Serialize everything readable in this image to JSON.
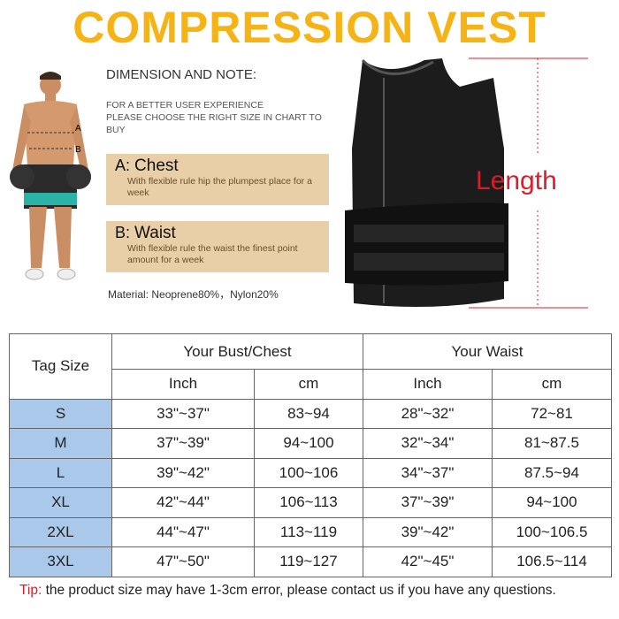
{
  "title": "COMPRESSION VEST",
  "dimension_heading": "DIMENSION AND NOTE:",
  "note_lines": [
    "FOR A BETTER USER EXPERIENCE",
    "PLEASE CHOOSE THE RIGHT SIZE IN CHART  TO BUY"
  ],
  "chest": {
    "letter": "A",
    "label": "Chest",
    "desc": "With flexible rule hip the plumpest place for a week"
  },
  "waist": {
    "letter": "B",
    "label": "Waist",
    "desc": "With flexible rule the waist the finest point amount for a week"
  },
  "material": "Material: Neoprene80%，Nylon20%",
  "figure_labels": {
    "a": "A",
    "b": "B"
  },
  "length_label": "Length",
  "table": {
    "tag_header": "Tag Size",
    "bust_header": "Your Bust/Chest",
    "waist_header": "Your Waist",
    "units": [
      "Inch",
      "cm",
      "Inch",
      "cm"
    ],
    "rows": [
      [
        "S",
        "33\"~37\"",
        "83~94",
        "28\"~32\"",
        "72~81"
      ],
      [
        "M",
        "37\"~39\"",
        "94~100",
        "32\"~34\"",
        "81~87.5"
      ],
      [
        "L",
        "39\"~42\"",
        "100~106",
        "34\"~37\"",
        "87.5~94"
      ],
      [
        "XL",
        "42\"~44\"",
        "106~113",
        "37\"~39\"",
        "94~100"
      ],
      [
        "2XL",
        "44\"~47\"",
        "113~119",
        "39\"~42\"",
        "100~106.5"
      ],
      [
        "3XL",
        "47\"~50\"",
        "119~127",
        "42\"~45\"",
        "106.5~114"
      ]
    ]
  },
  "tip": {
    "label": "Tip:",
    "text": " the product size may have 1-3cm error, please contact us if you have any questions."
  },
  "colors": {
    "title": "#f6b315",
    "accent_red": "#d81e2a",
    "tag_cell": "#a9c8ea",
    "note_box": "#e8cfa8"
  }
}
